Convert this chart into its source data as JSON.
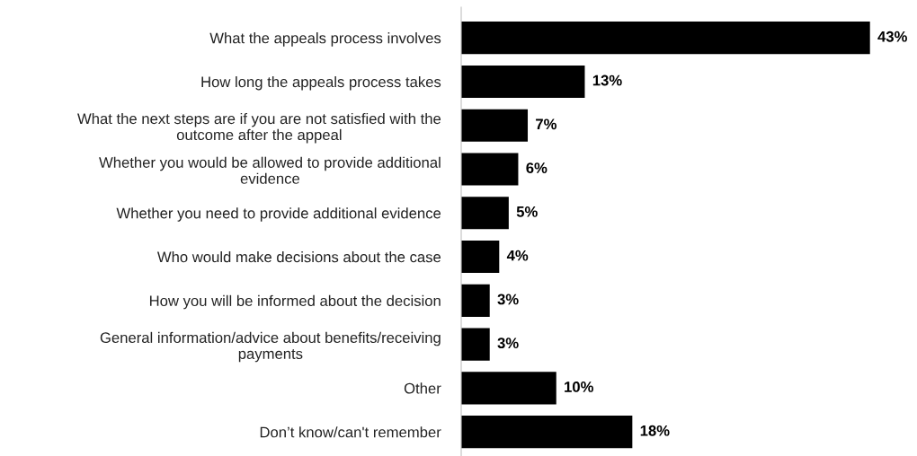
{
  "chart_data": {
    "type": "bar",
    "orientation": "horizontal",
    "color": "#000000",
    "categories": [
      "What the appeals process involves",
      "How long the appeals process takes",
      "What the next steps are if you are not satisfied with the\noutcome after the appeal",
      "Whether you would be allowed to provide additional\nevidence",
      "Whether you need to provide additional evidence",
      "Who would make decisions about the case",
      "How you will be informed about the decision",
      "General information/advice about benefits/receiving\npayments",
      "Other",
      "Don’t know/can't remember"
    ],
    "values": [
      43,
      13,
      7,
      6,
      5,
      4,
      3,
      3,
      10,
      18
    ],
    "value_labels": [
      "43%",
      "13%",
      "7%",
      "6%",
      "5%",
      "4%",
      "3%",
      "3%",
      "10%",
      "18%"
    ],
    "grid": false,
    "legend": false
  }
}
